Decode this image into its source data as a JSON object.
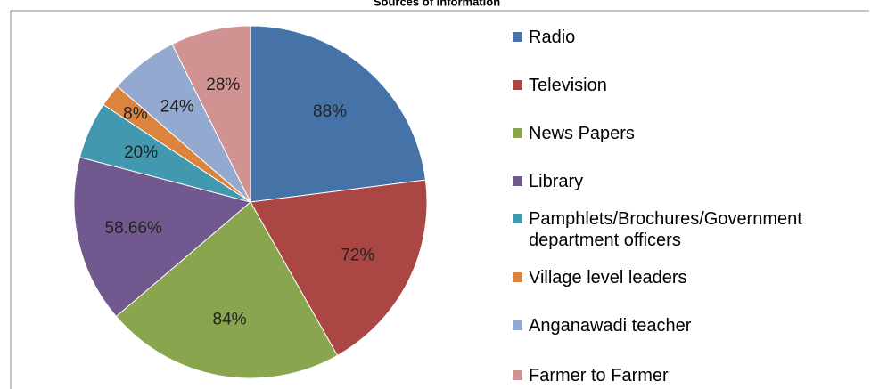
{
  "chart_data": {
    "type": "pie",
    "title": "Sources of Information",
    "categories": [
      "Radio",
      "Television",
      "News Papers",
      "Library",
      "Pamphlets/Brochures/Government department officers",
      "Village level leaders",
      "Anganawadi teacher",
      "Farmer to Farmer"
    ],
    "values": [
      88,
      72,
      84,
      58.66,
      20,
      8,
      24,
      28
    ],
    "value_labels": [
      "88%",
      "72%",
      "84%",
      "58.66%",
      "20%",
      "8%",
      "24%",
      "28%"
    ],
    "colors": [
      "#4572A7",
      "#AA4643",
      "#89A54E",
      "#71588F",
      "#4198AF",
      "#DB843D",
      "#93A9CF",
      "#D19392"
    ],
    "legend": "right"
  }
}
